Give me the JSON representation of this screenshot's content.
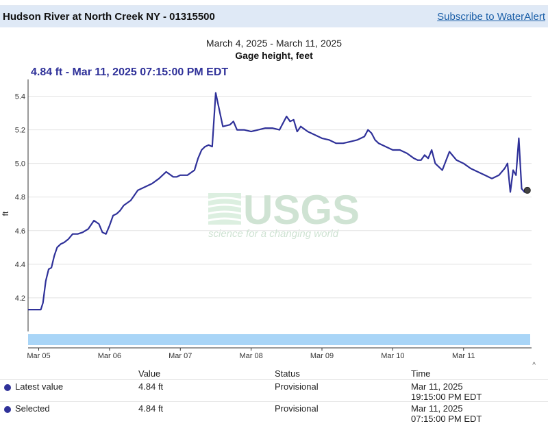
{
  "header": {
    "title": "Hudson River at North Creek NY - 01315500",
    "subscribe_label": "Subscribe to WaterAlert"
  },
  "chart_meta": {
    "date_range": "March 4, 2025 - March 11, 2025",
    "tooltip": "4.84 ft - Mar 11, 2025 07:15:00 PM EDT",
    "watermark_logo": "USGS",
    "watermark_tagline": "science for a changing world"
  },
  "chart_data": {
    "type": "line",
    "title": "Gage height, feet",
    "ylabel": "ft",
    "xlabel": "",
    "ylim": [
      4.0,
      5.5
    ],
    "yticks": [
      4.2,
      4.4,
      4.6,
      4.8,
      5.0,
      5.2,
      5.4
    ],
    "xlim": [
      -0.15,
      6.96
    ],
    "xticks": [
      {
        "label": "Mar 05",
        "x": 0
      },
      {
        "label": "Mar 06",
        "x": 1
      },
      {
        "label": "Mar 07",
        "x": 2
      },
      {
        "label": "Mar 08",
        "x": 3
      },
      {
        "label": "Mar 09",
        "x": 4
      },
      {
        "label": "Mar 10",
        "x": 5
      },
      {
        "label": "Mar 11",
        "x": 6
      }
    ],
    "x_unit": "days since Mar 05 00:00 EDT",
    "series": [
      {
        "name": "Gage height",
        "color": "#2f3199",
        "x": [
          -0.15,
          0.03,
          0.06,
          0.1,
          0.14,
          0.18,
          0.22,
          0.26,
          0.31,
          0.36,
          0.42,
          0.48,
          0.55,
          0.62,
          0.7,
          0.78,
          0.85,
          0.9,
          0.95,
          1.0,
          1.05,
          1.1,
          1.15,
          1.2,
          1.3,
          1.4,
          1.5,
          1.6,
          1.7,
          1.8,
          1.9,
          1.95,
          2.0,
          2.1,
          2.2,
          2.25,
          2.3,
          2.35,
          2.4,
          2.45,
          2.5,
          2.6,
          2.7,
          2.75,
          2.8,
          2.85,
          2.9,
          3.0,
          3.1,
          3.2,
          3.3,
          3.4,
          3.5,
          3.55,
          3.6,
          3.65,
          3.7,
          3.8,
          3.9,
          4.0,
          4.1,
          4.2,
          4.3,
          4.4,
          4.5,
          4.6,
          4.65,
          4.7,
          4.75,
          4.8,
          4.9,
          5.0,
          5.1,
          5.2,
          5.3,
          5.35,
          5.4,
          5.45,
          5.5,
          5.55,
          5.6,
          5.7,
          5.8,
          5.9,
          6.0,
          6.1,
          6.2,
          6.3,
          6.4,
          6.5,
          6.58,
          6.62,
          6.66,
          6.7,
          6.74,
          6.78,
          6.82,
          6.86,
          6.9
        ],
        "values": [
          4.13,
          4.13,
          4.17,
          4.3,
          4.37,
          4.38,
          4.45,
          4.5,
          4.52,
          4.53,
          4.55,
          4.58,
          4.58,
          4.59,
          4.61,
          4.66,
          4.64,
          4.59,
          4.58,
          4.63,
          4.69,
          4.7,
          4.72,
          4.75,
          4.78,
          4.84,
          4.86,
          4.88,
          4.91,
          4.95,
          4.92,
          4.92,
          4.93,
          4.93,
          4.96,
          5.03,
          5.08,
          5.1,
          5.11,
          5.1,
          5.42,
          5.22,
          5.23,
          5.25,
          5.2,
          5.2,
          5.2,
          5.19,
          5.2,
          5.21,
          5.21,
          5.2,
          5.28,
          5.25,
          5.26,
          5.19,
          5.22,
          5.19,
          5.17,
          5.15,
          5.14,
          5.12,
          5.12,
          5.13,
          5.14,
          5.16,
          5.2,
          5.18,
          5.14,
          5.12,
          5.1,
          5.08,
          5.08,
          5.06,
          5.03,
          5.02,
          5.02,
          5.05,
          5.03,
          5.08,
          5.0,
          4.96,
          5.07,
          5.02,
          5.0,
          4.97,
          4.95,
          4.93,
          4.91,
          4.93,
          4.97,
          5.0,
          4.83,
          4.96,
          4.93,
          5.15,
          4.85,
          4.83,
          4.84
        ]
      }
    ],
    "selected_point": {
      "x": 6.9,
      "y": 4.84
    }
  },
  "table": {
    "headers": {
      "value": "Value",
      "status": "Status",
      "time": "Time"
    },
    "rows": [
      {
        "label": "Latest value",
        "value": "4.84 ft",
        "status": "Provisional",
        "date": "Mar 11, 2025",
        "time": "19:15:00 PM EDT"
      },
      {
        "label": "Selected",
        "value": "4.84 ft",
        "status": "Provisional",
        "date": "Mar 11, 2025",
        "time": "07:15:00 PM EDT"
      }
    ]
  },
  "colors": {
    "line": "#2f3199",
    "brush": "#a9d5f7",
    "header_bg": "#dfe9f6"
  }
}
